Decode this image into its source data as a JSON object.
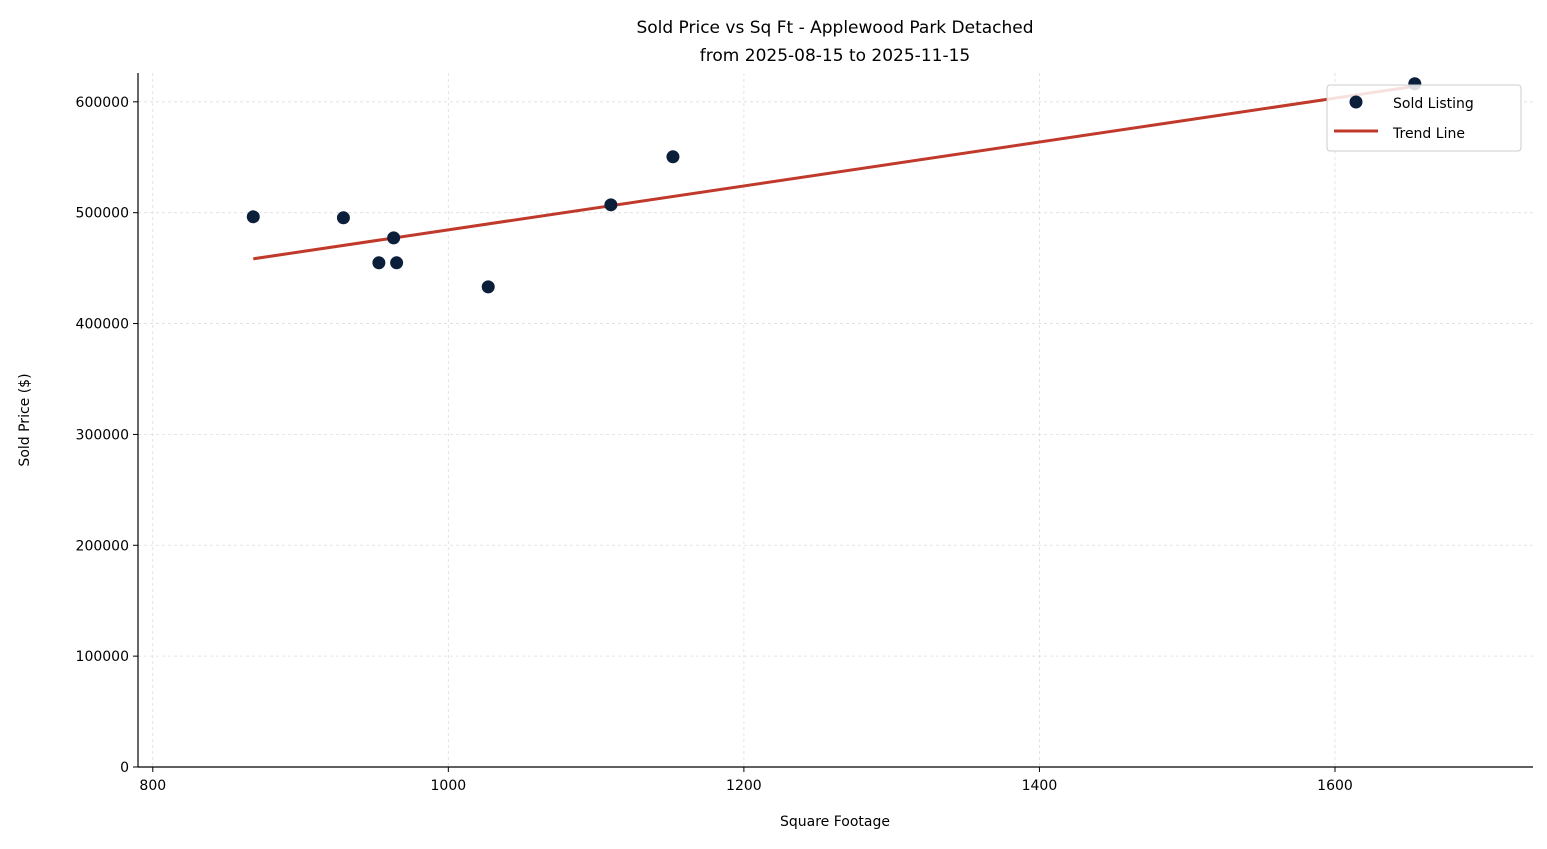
{
  "chart_data": {
    "type": "scatter",
    "title": "Sold Price vs Sq Ft - Applewood Park Detached",
    "subtitle": "from 2025-08-15 to 2025-11-15",
    "xlabel": "Square Footage",
    "ylabel": "Sold Price ($)",
    "xlim": [
      790,
      1734
    ],
    "ylim": [
      0,
      626000
    ],
    "xticks": [
      800,
      1000,
      1200,
      1400,
      1600
    ],
    "yticks": [
      0,
      100000,
      200000,
      300000,
      400000,
      500000,
      600000
    ],
    "grid": true,
    "legend_position": "top-right",
    "series": [
      {
        "name": "Sold Listing",
        "kind": "scatter",
        "color": "#0b1f3a",
        "points": [
          [
            868,
            496300
          ],
          [
            929,
            495400
          ],
          [
            953,
            454800
          ],
          [
            963,
            477300
          ],
          [
            965,
            454800
          ],
          [
            1027,
            433100
          ],
          [
            1110,
            507100
          ],
          [
            1152,
            550400
          ],
          [
            1654,
            616300
          ]
        ]
      },
      {
        "name": "Trend Line",
        "kind": "line",
        "color": "#c0392b",
        "points": [
          [
            868,
            458400
          ],
          [
            1654,
            614000
          ]
        ]
      }
    ]
  }
}
